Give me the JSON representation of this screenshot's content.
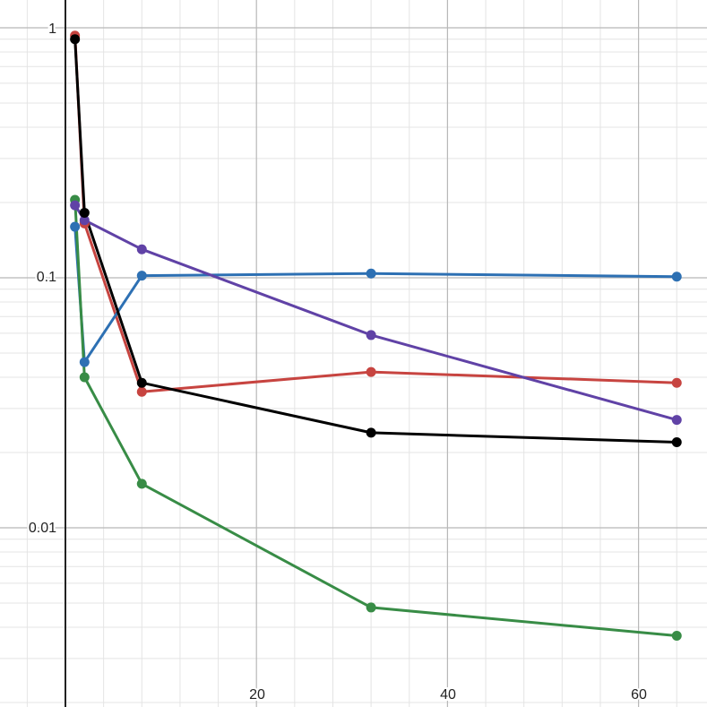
{
  "chart_data": {
    "type": "line",
    "title": "",
    "xlabel": "",
    "ylabel": "",
    "x_scale": "linear",
    "y_scale": "log",
    "xlim": [
      -1,
      65
    ],
    "ylim": [
      0.002,
      1.1
    ],
    "x_ticks": [
      {
        "value": 20,
        "label": "20"
      },
      {
        "value": 40,
        "label": "40"
      },
      {
        "value": 60,
        "label": "60"
      }
    ],
    "y_ticks": [
      {
        "value": 1,
        "label": "1"
      },
      {
        "value": 0.1,
        "label": "0.1"
      },
      {
        "value": 0.01,
        "label": "0.01"
      }
    ],
    "grid": true,
    "legend": "none",
    "series": [
      {
        "color": "#c74440",
        "x": [
          1,
          2,
          8,
          32,
          64
        ],
        "y": [
          0.93,
          0.165,
          0.035,
          0.042,
          0.038
        ]
      },
      {
        "color": "#2d70b3",
        "x": [
          1,
          2,
          8,
          32,
          64
        ],
        "y": [
          0.16,
          0.046,
          0.102,
          0.104,
          0.101
        ]
      },
      {
        "color": "#388c46",
        "x": [
          1,
          2,
          8,
          32,
          64
        ],
        "y": [
          0.205,
          0.04,
          0.015,
          0.0048,
          0.0037
        ]
      },
      {
        "color": "#6042a6",
        "x": [
          1,
          2,
          8,
          32,
          64
        ],
        "y": [
          0.195,
          0.17,
          0.13,
          0.059,
          0.027
        ]
      },
      {
        "color": "#000000",
        "x": [
          1,
          2,
          8,
          32,
          64
        ],
        "y": [
          0.9,
          0.182,
          0.038,
          0.024,
          0.022
        ]
      }
    ]
  }
}
